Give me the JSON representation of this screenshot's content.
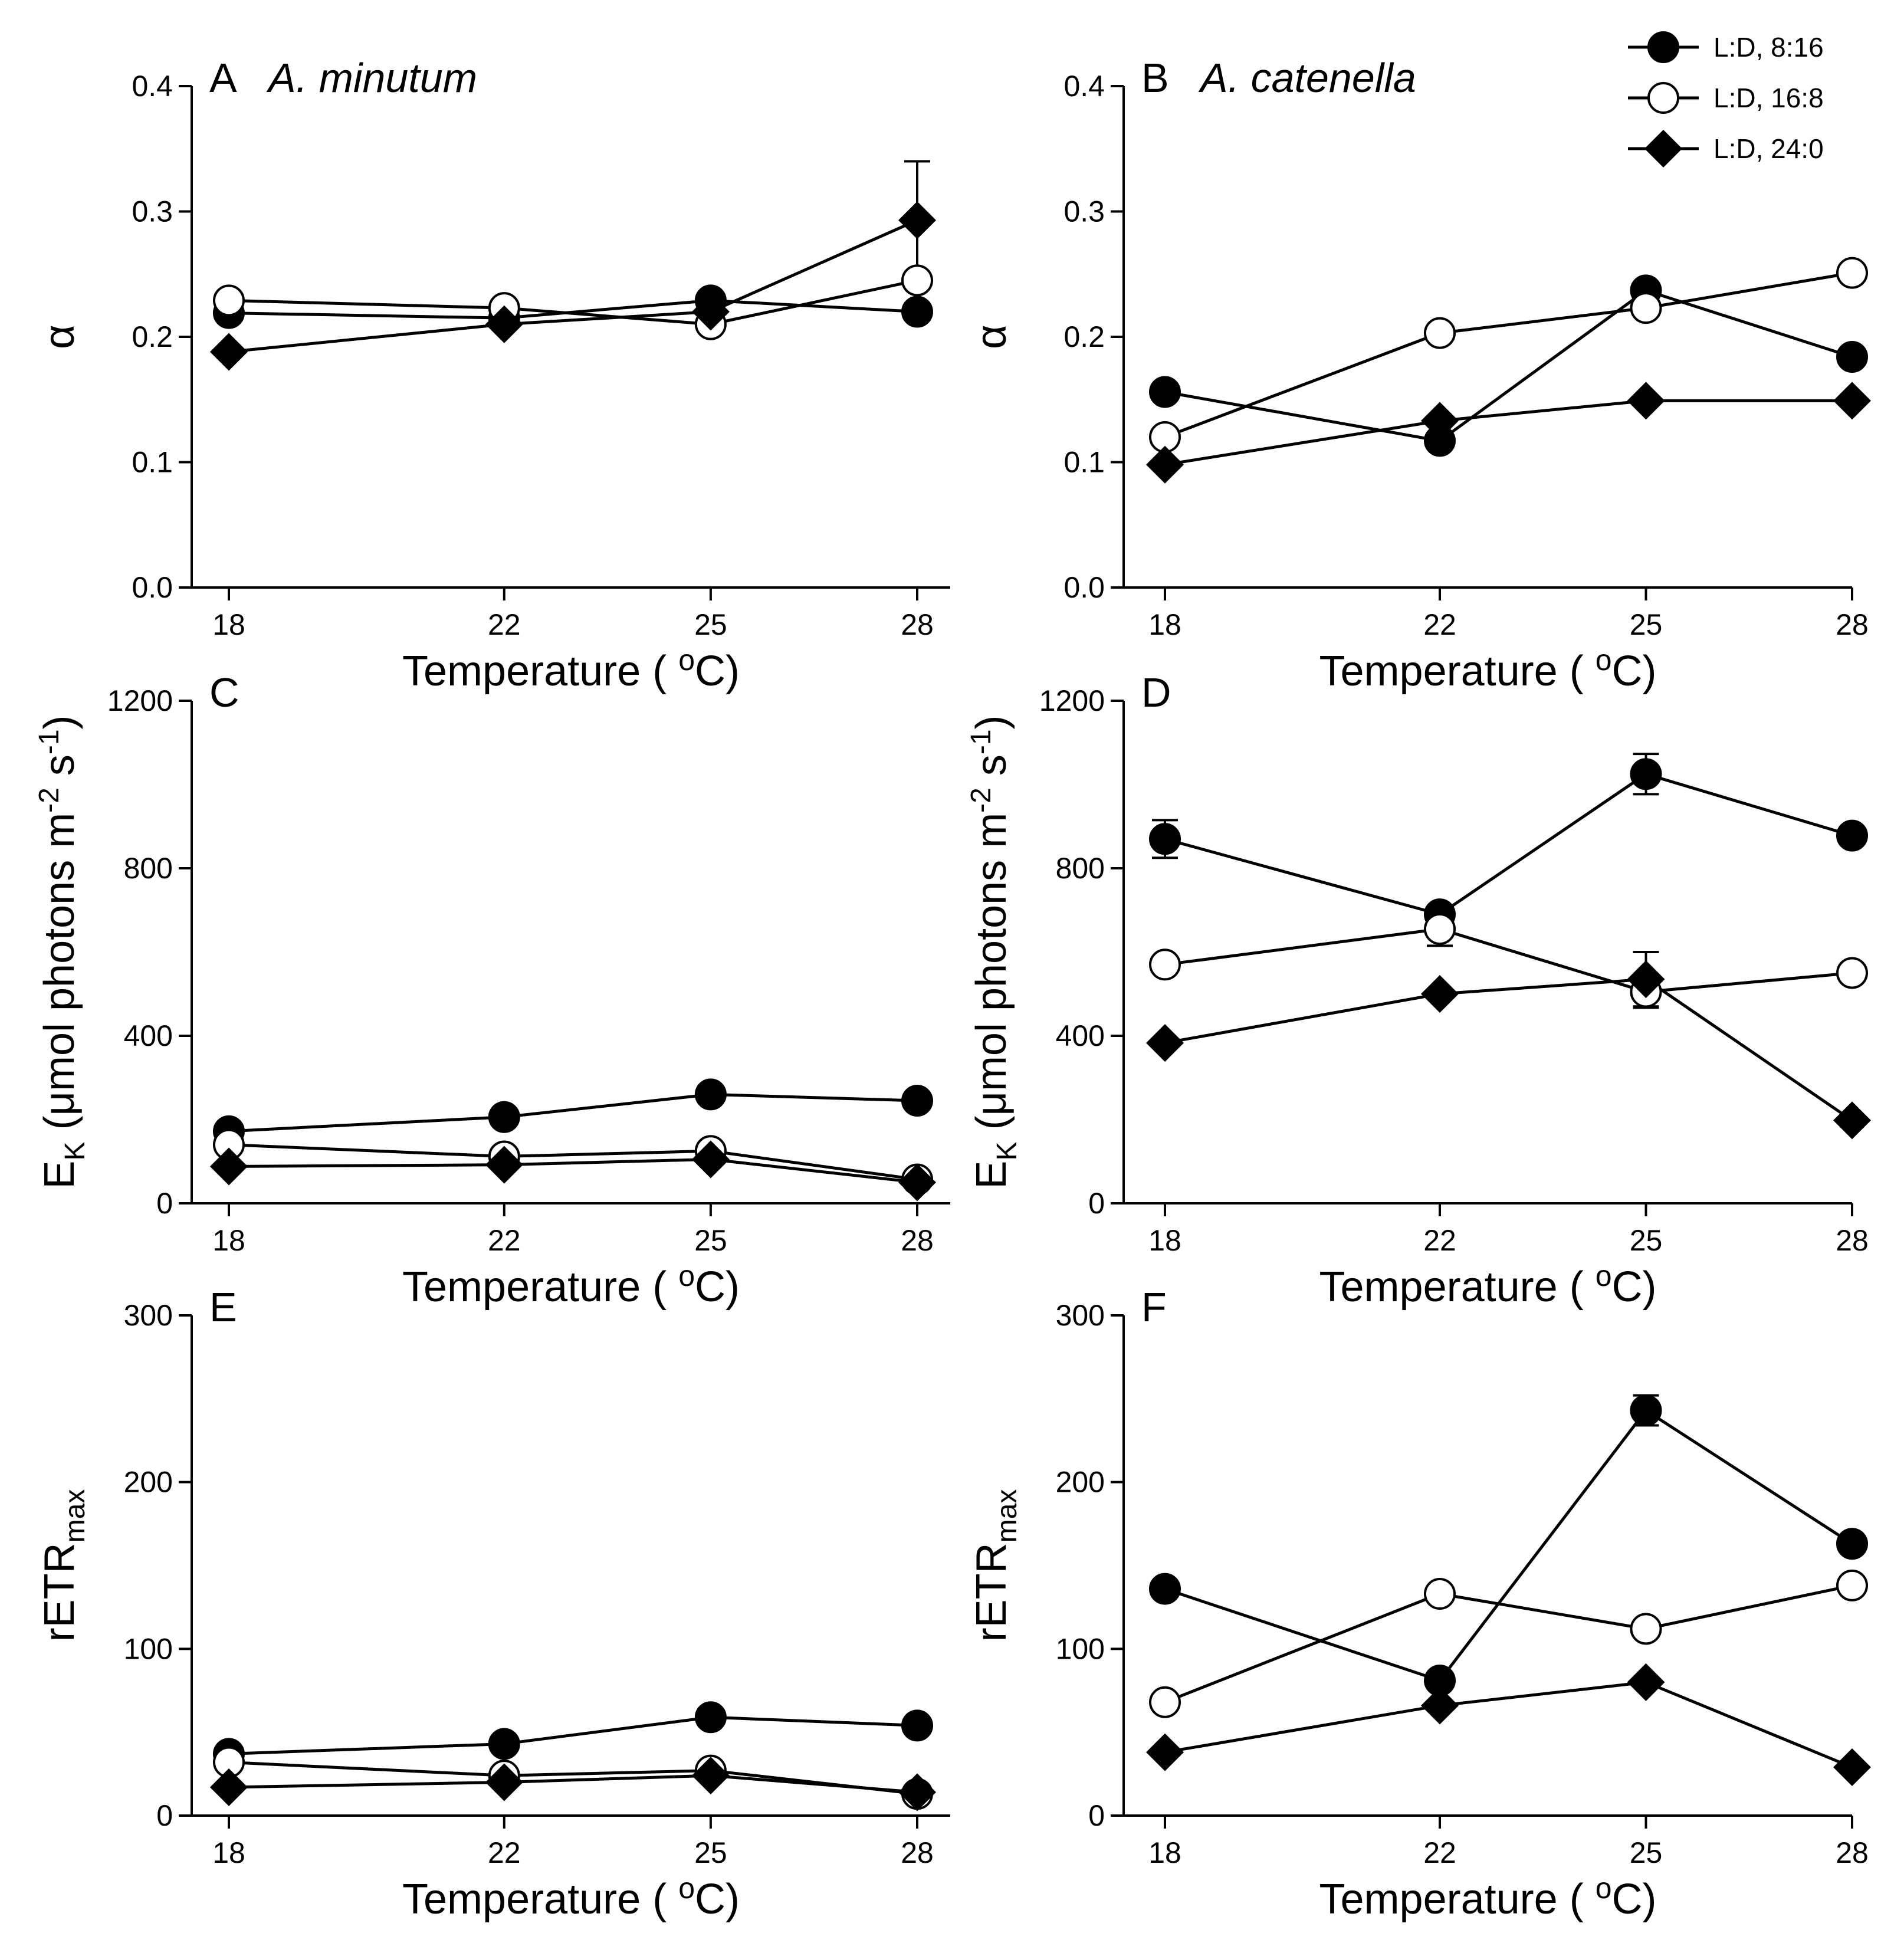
{
  "legend": [
    {
      "label": "L:D, 8:16",
      "marker": "filled-circle"
    },
    {
      "label": "L:D, 16:8",
      "marker": "open-circle"
    },
    {
      "label": "L:D, 24:0",
      "marker": "filled-diamond"
    }
  ],
  "chart_data": [
    {
      "panel": "A",
      "species": "A. minutum",
      "type": "line",
      "xlabel": "Temperature ( oC)",
      "ylabel": "α",
      "x": [
        18,
        22,
        25,
        28
      ],
      "xticks": [
        "18",
        "22",
        "25",
        "28"
      ],
      "ylim": [
        0,
        0.4
      ],
      "yticks": [
        "0.0",
        "0.1",
        "0.2",
        "0.3",
        "0.4"
      ],
      "series": [
        {
          "name": "L:D, 8:16",
          "marker": "filled-circle",
          "values": [
            0.219,
            0.215,
            0.229,
            0.22
          ],
          "err": [
            0,
            0,
            0,
            0
          ]
        },
        {
          "name": "L:D, 16:8",
          "marker": "open-circle",
          "values": [
            0.229,
            0.223,
            0.21,
            0.245
          ],
          "err": [
            0,
            0,
            0,
            0
          ]
        },
        {
          "name": "L:D, 24:0",
          "marker": "filled-diamond",
          "values": [
            0.188,
            0.21,
            0.22,
            0.293
          ],
          "err": [
            0,
            0,
            0,
            0.047
          ]
        }
      ]
    },
    {
      "panel": "B",
      "species": "A. catenella",
      "type": "line",
      "xlabel": "Temperature ( oC)",
      "ylabel": "α",
      "x": [
        18,
        22,
        25,
        28
      ],
      "xticks": [
        "18",
        "22",
        "25",
        "28"
      ],
      "ylim": [
        0,
        0.4
      ],
      "yticks": [
        "0.0",
        "0.1",
        "0.2",
        "0.3",
        "0.4"
      ],
      "series": [
        {
          "name": "L:D, 8:16",
          "marker": "filled-circle",
          "values": [
            0.156,
            0.117,
            0.237,
            0.184
          ],
          "err": [
            0,
            0,
            0,
            0
          ]
        },
        {
          "name": "L:D, 16:8",
          "marker": "open-circle",
          "values": [
            0.12,
            0.203,
            0.223,
            0.251
          ],
          "err": [
            0,
            0,
            0,
            0
          ]
        },
        {
          "name": "L:D, 24:0",
          "marker": "filled-diamond",
          "values": [
            0.098,
            0.133,
            0.149,
            0.149
          ],
          "err": [
            0,
            0,
            0,
            0
          ]
        }
      ]
    },
    {
      "panel": "C",
      "species": "",
      "type": "line",
      "xlabel": "Temperature ( oC)",
      "ylabel": "EK (μmol photons m-2 s-1)",
      "x": [
        18,
        22,
        25,
        28
      ],
      "xticks": [
        "18",
        "22",
        "25",
        "28"
      ],
      "ylim": [
        0,
        1200
      ],
      "yticks": [
        "0",
        "400",
        "800",
        "1200"
      ],
      "series": [
        {
          "name": "L:D, 8:16",
          "marker": "filled-circle",
          "values": [
            172,
            206,
            260,
            245
          ],
          "err": [
            0,
            0,
            0,
            0
          ]
        },
        {
          "name": "L:D, 16:8",
          "marker": "open-circle",
          "values": [
            140,
            112,
            125,
            57
          ],
          "err": [
            0,
            0,
            0,
            0
          ]
        },
        {
          "name": "L:D, 24:0",
          "marker": "filled-diamond",
          "values": [
            88,
            92,
            105,
            50
          ],
          "err": [
            0,
            0,
            0,
            0
          ]
        }
      ]
    },
    {
      "panel": "D",
      "species": "",
      "type": "line",
      "xlabel": "Temperature ( oC)",
      "ylabel": "EK (μmol photons m-2 s-1)",
      "x": [
        18,
        22,
        25,
        28
      ],
      "xticks": [
        "18",
        "22",
        "25",
        "28"
      ],
      "ylim": [
        0,
        1200
      ],
      "yticks": [
        "0",
        "400",
        "800",
        "1200"
      ],
      "series": [
        {
          "name": "L:D, 8:16",
          "marker": "filled-circle",
          "values": [
            870,
            690,
            1025,
            878
          ],
          "err": [
            45,
            0,
            48,
            0
          ]
        },
        {
          "name": "L:D, 16:8",
          "marker": "open-circle",
          "values": [
            570,
            655,
            505,
            550
          ],
          "err": [
            0,
            40,
            38,
            0
          ]
        },
        {
          "name": "L:D, 24:0",
          "marker": "filled-diamond",
          "values": [
            383,
            500,
            535,
            198
          ],
          "err": [
            0,
            0,
            65,
            0
          ]
        }
      ]
    },
    {
      "panel": "E",
      "species": "",
      "type": "line",
      "xlabel": "Temperature ( oC)",
      "ylabel": "rETRmax",
      "x": [
        18,
        22,
        25,
        28
      ],
      "xticks": [
        "18",
        "22",
        "25",
        "28"
      ],
      "ylim": [
        0,
        300
      ],
      "yticks": [
        "0",
        "100",
        "200",
        "300"
      ],
      "series": [
        {
          "name": "L:D, 8:16",
          "marker": "filled-circle",
          "values": [
            37,
            43,
            59,
            54
          ],
          "err": [
            0,
            0,
            0,
            0
          ]
        },
        {
          "name": "L:D, 16:8",
          "marker": "open-circle",
          "values": [
            32,
            24,
            27,
            13
          ],
          "err": [
            0,
            0,
            0,
            0
          ]
        },
        {
          "name": "L:D, 24:0",
          "marker": "filled-diamond",
          "values": [
            17,
            20,
            24,
            14
          ],
          "err": [
            0,
            0,
            0,
            0
          ]
        }
      ]
    },
    {
      "panel": "F",
      "species": "",
      "type": "line",
      "xlabel": "Temperature ( oC)",
      "ylabel": "rETRmax",
      "x": [
        18,
        22,
        25,
        28
      ],
      "xticks": [
        "18",
        "22",
        "25",
        "28"
      ],
      "ylim": [
        0,
        300
      ],
      "yticks": [
        "0",
        "100",
        "200",
        "300"
      ],
      "series": [
        {
          "name": "L:D, 8:16",
          "marker": "filled-circle",
          "values": [
            136,
            81,
            243,
            163
          ],
          "err": [
            0,
            0,
            9,
            0
          ]
        },
        {
          "name": "L:D, 16:8",
          "marker": "open-circle",
          "values": [
            68,
            133,
            112,
            138
          ],
          "err": [
            0,
            0,
            0,
            0
          ]
        },
        {
          "name": "L:D, 24:0",
          "marker": "filled-diamond",
          "values": [
            38,
            66,
            80,
            29
          ],
          "err": [
            0,
            0,
            0,
            0
          ]
        }
      ]
    }
  ]
}
